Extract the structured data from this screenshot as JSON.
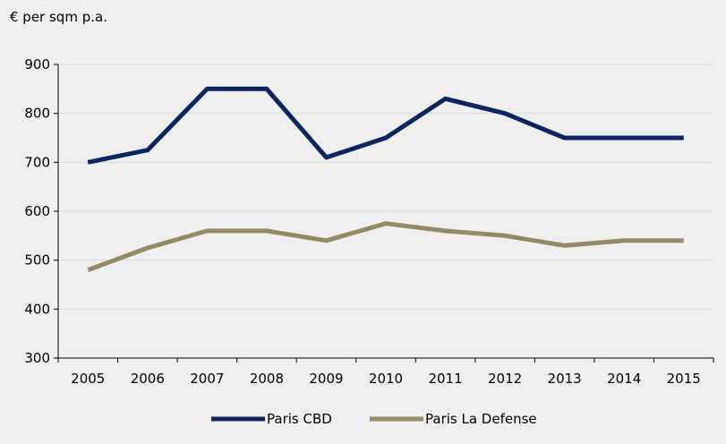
{
  "unit_label": "€ per sqm p.a.",
  "colors": {
    "background": "#efefef",
    "gridline": "#d9d9d9",
    "axis": "#000000",
    "paris_cbd": "#0b2561",
    "paris_la_defense": "#958b62"
  },
  "chart_data": {
    "type": "line",
    "title": "",
    "xlabel": "",
    "ylabel": "€ per sqm p.a.",
    "x": [
      "2005",
      "2006",
      "2007",
      "2008",
      "2009",
      "2010",
      "2011",
      "2012",
      "2013",
      "2014",
      "2015"
    ],
    "ylim": [
      300,
      900
    ],
    "yticks": [
      300,
      400,
      500,
      600,
      700,
      800,
      900
    ],
    "grid": true,
    "legend_position": "bottom",
    "series": [
      {
        "name": "Paris CBD",
        "color": "#0b2561",
        "values": [
          700,
          725,
          850,
          850,
          710,
          750,
          830,
          800,
          750,
          750,
          750
        ]
      },
      {
        "name": "Paris La Defense",
        "color": "#958b62",
        "values": [
          480,
          525,
          560,
          560,
          540,
          575,
          560,
          550,
          530,
          540,
          540
        ]
      }
    ]
  }
}
